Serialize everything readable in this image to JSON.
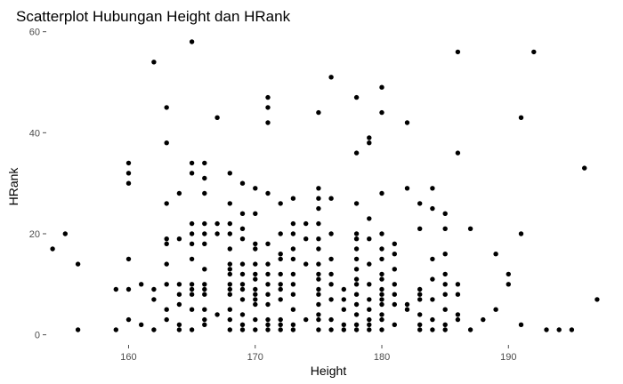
{
  "chart_data": {
    "type": "scatter",
    "title": "Scatterplot Hubungan Height dan HRank",
    "xlabel": "Height",
    "ylabel": "HRank",
    "xlim": [
      153.5,
      197.5
    ],
    "ylim": [
      -2,
      61
    ],
    "xticks": [
      160,
      170,
      180,
      190
    ],
    "yticks": [
      0,
      20,
      40,
      60
    ],
    "grid": false,
    "legend": "none",
    "point_color": "#000000",
    "points": [
      [
        154,
        17
      ],
      [
        155,
        20
      ],
      [
        156,
        14
      ],
      [
        156,
        1
      ],
      [
        159,
        9
      ],
      [
        159,
        1
      ],
      [
        160,
        34
      ],
      [
        160,
        32
      ],
      [
        160,
        30
      ],
      [
        160,
        15
      ],
      [
        160,
        9
      ],
      [
        160,
        3
      ],
      [
        161,
        10
      ],
      [
        161,
        2
      ],
      [
        162,
        54
      ],
      [
        162,
        9
      ],
      [
        162,
        7
      ],
      [
        162,
        1
      ],
      [
        163,
        45
      ],
      [
        163,
        38
      ],
      [
        163,
        26
      ],
      [
        163,
        19
      ],
      [
        163,
        18
      ],
      [
        163,
        14
      ],
      [
        163,
        10
      ],
      [
        163,
        5
      ],
      [
        163,
        3
      ],
      [
        164,
        28
      ],
      [
        164,
        19
      ],
      [
        164,
        10
      ],
      [
        164,
        8
      ],
      [
        164,
        6
      ],
      [
        164,
        2
      ],
      [
        164,
        1
      ],
      [
        165,
        58
      ],
      [
        165,
        34
      ],
      [
        165,
        32
      ],
      [
        165,
        22
      ],
      [
        165,
        20
      ],
      [
        165,
        18
      ],
      [
        165,
        15
      ],
      [
        165,
        10
      ],
      [
        165,
        9
      ],
      [
        165,
        8
      ],
      [
        165,
        5
      ],
      [
        165,
        1
      ],
      [
        166,
        34
      ],
      [
        166,
        31
      ],
      [
        166,
        28
      ],
      [
        166,
        22
      ],
      [
        166,
        20
      ],
      [
        166,
        18
      ],
      [
        166,
        13
      ],
      [
        166,
        10
      ],
      [
        166,
        9
      ],
      [
        166,
        8
      ],
      [
        166,
        5
      ],
      [
        166,
        3
      ],
      [
        166,
        2
      ],
      [
        167,
        43
      ],
      [
        167,
        22
      ],
      [
        167,
        20
      ],
      [
        167,
        4
      ],
      [
        168,
        32
      ],
      [
        168,
        26
      ],
      [
        168,
        22
      ],
      [
        168,
        20
      ],
      [
        168,
        17
      ],
      [
        168,
        14
      ],
      [
        168,
        13
      ],
      [
        168,
        12
      ],
      [
        168,
        10
      ],
      [
        168,
        9
      ],
      [
        168,
        8
      ],
      [
        168,
        5
      ],
      [
        168,
        3
      ],
      [
        168,
        1
      ],
      [
        169,
        30
      ],
      [
        169,
        24
      ],
      [
        169,
        21
      ],
      [
        169,
        19
      ],
      [
        169,
        14
      ],
      [
        169,
        12
      ],
      [
        169,
        10
      ],
      [
        169,
        9
      ],
      [
        169,
        7
      ],
      [
        169,
        4
      ],
      [
        169,
        2
      ],
      [
        169,
        1
      ],
      [
        170,
        29
      ],
      [
        170,
        24
      ],
      [
        170,
        18
      ],
      [
        170,
        17
      ],
      [
        170,
        14
      ],
      [
        170,
        12
      ],
      [
        170,
        11
      ],
      [
        170,
        9
      ],
      [
        170,
        8
      ],
      [
        170,
        7
      ],
      [
        170,
        6
      ],
      [
        170,
        3
      ],
      [
        170,
        1
      ],
      [
        171,
        47
      ],
      [
        171,
        45
      ],
      [
        171,
        42
      ],
      [
        171,
        28
      ],
      [
        171,
        18
      ],
      [
        171,
        14
      ],
      [
        171,
        12
      ],
      [
        171,
        10
      ],
      [
        171,
        8
      ],
      [
        171,
        6
      ],
      [
        171,
        3
      ],
      [
        171,
        2
      ],
      [
        171,
        1
      ],
      [
        172,
        26
      ],
      [
        172,
        20
      ],
      [
        172,
        16
      ],
      [
        172,
        15
      ],
      [
        172,
        12
      ],
      [
        172,
        10
      ],
      [
        172,
        9
      ],
      [
        172,
        7
      ],
      [
        172,
        3
      ],
      [
        172,
        2
      ],
      [
        172,
        1
      ],
      [
        173,
        27
      ],
      [
        173,
        22
      ],
      [
        173,
        20
      ],
      [
        173,
        17
      ],
      [
        173,
        15
      ],
      [
        173,
        12
      ],
      [
        173,
        10
      ],
      [
        173,
        8
      ],
      [
        173,
        5
      ],
      [
        173,
        2
      ],
      [
        173,
        1
      ],
      [
        174,
        22
      ],
      [
        174,
        19
      ],
      [
        174,
        14
      ],
      [
        174,
        3
      ],
      [
        175,
        44
      ],
      [
        175,
        29
      ],
      [
        175,
        27
      ],
      [
        175,
        25
      ],
      [
        175,
        22
      ],
      [
        175,
        19
      ],
      [
        175,
        17
      ],
      [
        175,
        14
      ],
      [
        175,
        12
      ],
      [
        175,
        11
      ],
      [
        175,
        9
      ],
      [
        175,
        8
      ],
      [
        175,
        6
      ],
      [
        175,
        4
      ],
      [
        175,
        3
      ],
      [
        175,
        1
      ],
      [
        176,
        51
      ],
      [
        176,
        27
      ],
      [
        176,
        20
      ],
      [
        176,
        15
      ],
      [
        176,
        12
      ],
      [
        176,
        10
      ],
      [
        176,
        7
      ],
      [
        176,
        3
      ],
      [
        176,
        1
      ],
      [
        177,
        9
      ],
      [
        177,
        7
      ],
      [
        177,
        5
      ],
      [
        177,
        2
      ],
      [
        177,
        1
      ],
      [
        178,
        47
      ],
      [
        178,
        36
      ],
      [
        178,
        26
      ],
      [
        178,
        20
      ],
      [
        178,
        19
      ],
      [
        178,
        17
      ],
      [
        178,
        15
      ],
      [
        178,
        13
      ],
      [
        178,
        11
      ],
      [
        178,
        10
      ],
      [
        178,
        8
      ],
      [
        178,
        6
      ],
      [
        178,
        4
      ],
      [
        178,
        2
      ],
      [
        178,
        1
      ],
      [
        179,
        39
      ],
      [
        179,
        38
      ],
      [
        179,
        23
      ],
      [
        179,
        19
      ],
      [
        179,
        14
      ],
      [
        179,
        10
      ],
      [
        179,
        7
      ],
      [
        179,
        5
      ],
      [
        179,
        3
      ],
      [
        179,
        2
      ],
      [
        179,
        1
      ],
      [
        180,
        49
      ],
      [
        180,
        44
      ],
      [
        180,
        28
      ],
      [
        180,
        20
      ],
      [
        180,
        17
      ],
      [
        180,
        15
      ],
      [
        180,
        12
      ],
      [
        180,
        11
      ],
      [
        180,
        9
      ],
      [
        180,
        8
      ],
      [
        180,
        7
      ],
      [
        180,
        6
      ],
      [
        180,
        4
      ],
      [
        180,
        3
      ],
      [
        180,
        1
      ],
      [
        181,
        18
      ],
      [
        181,
        16
      ],
      [
        181,
        13
      ],
      [
        181,
        10
      ],
      [
        181,
        8
      ],
      [
        181,
        6
      ],
      [
        181,
        2
      ],
      [
        182,
        42
      ],
      [
        182,
        29
      ],
      [
        182,
        6
      ],
      [
        182,
        5
      ],
      [
        183,
        26
      ],
      [
        183,
        21
      ],
      [
        183,
        9
      ],
      [
        183,
        8
      ],
      [
        183,
        7
      ],
      [
        183,
        4
      ],
      [
        183,
        2
      ],
      [
        183,
        1
      ],
      [
        184,
        29
      ],
      [
        184,
        25
      ],
      [
        184,
        15
      ],
      [
        184,
        11
      ],
      [
        184,
        7
      ],
      [
        184,
        3
      ],
      [
        184,
        1
      ],
      [
        185,
        24
      ],
      [
        185,
        21
      ],
      [
        185,
        16
      ],
      [
        185,
        12
      ],
      [
        185,
        10
      ],
      [
        185,
        8
      ],
      [
        185,
        5
      ],
      [
        185,
        2
      ],
      [
        185,
        1
      ],
      [
        186,
        56
      ],
      [
        186,
        36
      ],
      [
        186,
        10
      ],
      [
        186,
        8
      ],
      [
        186,
        4
      ],
      [
        186,
        3
      ],
      [
        187,
        21
      ],
      [
        187,
        1
      ],
      [
        188,
        3
      ],
      [
        189,
        16
      ],
      [
        189,
        5
      ],
      [
        190,
        12
      ],
      [
        190,
        10
      ],
      [
        191,
        43
      ],
      [
        191,
        20
      ],
      [
        191,
        2
      ],
      [
        192,
        56
      ],
      [
        193,
        1
      ],
      [
        194,
        1
      ],
      [
        195,
        1
      ],
      [
        196,
        33
      ],
      [
        197,
        7
      ]
    ]
  }
}
